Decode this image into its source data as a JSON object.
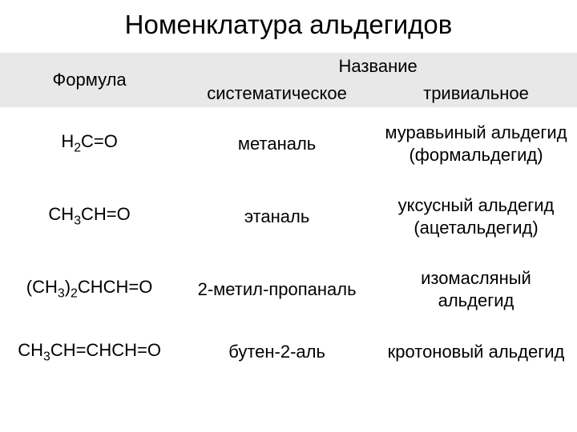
{
  "title": "Номенклатура альдегидов",
  "headers": {
    "formula": "Формула",
    "name": "Название",
    "systematic": "систематическое",
    "trivial": "тривиальное"
  },
  "rows": [
    {
      "formula_html": "H<span class='sub'>2</span>C=O",
      "systematic": "метаналь",
      "trivial_line1": "муравьиный альдегид",
      "trivial_line2": "(формальдегид)"
    },
    {
      "formula_html": "CH<span class='sub'>3</span>CH=O",
      "systematic": "этаналь",
      "trivial_line1": "уксусный альдегид",
      "trivial_line2": "(ацетальдегид)"
    },
    {
      "formula_html": "(CH<span class='sub'>3</span>)<span class='sub'>2</span>CHCH=O",
      "systematic": "2-метил-пропаналь",
      "trivial_line1": "изомасляный",
      "trivial_line2": "альдегид"
    },
    {
      "formula_html": "CH<span class='sub'>3</span>CH=CHCH=O",
      "systematic": "бутен-2-аль",
      "trivial_line1": "кротоновый альдегид",
      "trivial_line2": ""
    }
  ],
  "style": {
    "background": "#ffffff",
    "header_bg": "#e8e8e8",
    "text_color": "#000000",
    "title_fontsize": 33,
    "header_fontsize": 22,
    "cell_fontsize": 22
  }
}
